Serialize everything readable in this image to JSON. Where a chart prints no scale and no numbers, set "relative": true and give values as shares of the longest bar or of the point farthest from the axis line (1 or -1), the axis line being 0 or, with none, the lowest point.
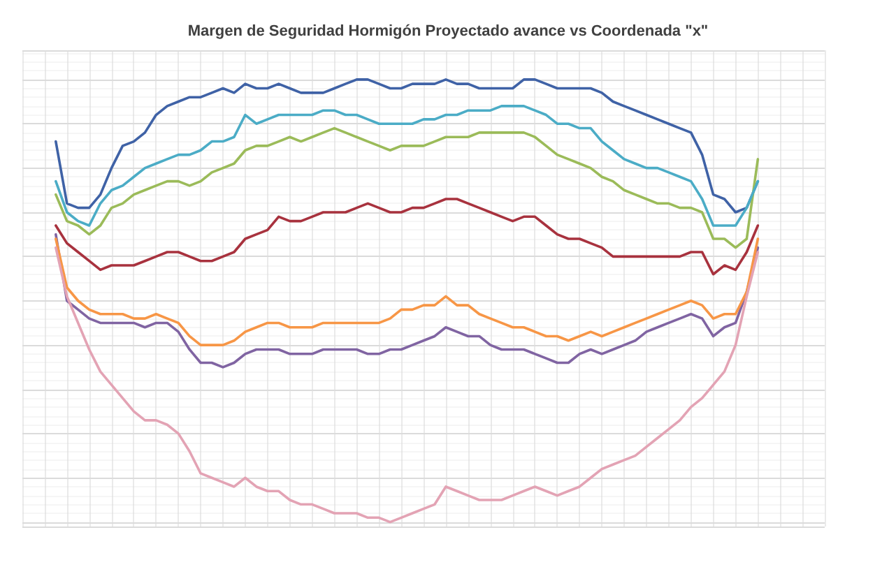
{
  "chart_data": {
    "type": "line",
    "title": "Margen de Seguridad Hormigón Proyectado avance vs Coordenada \"x\"",
    "relative": true,
    "grid": true,
    "categories": [
      null,
      null,
      null,
      null,
      null,
      null,
      null,
      null,
      null,
      null,
      null,
      null,
      null,
      null,
      null,
      null,
      null,
      null,
      null,
      null,
      null,
      null,
      null,
      null,
      null,
      null,
      null,
      null,
      null,
      null,
      null,
      null,
      null,
      null,
      null,
      null,
      null,
      null,
      null,
      null,
      null,
      null,
      null,
      null,
      null,
      null,
      null,
      null,
      null,
      null,
      null,
      null,
      null,
      null,
      null,
      null,
      null,
      null,
      null,
      null,
      null,
      null,
      null,
      null,
      null,
      null,
      null,
      null,
      null,
      null,
      null,
      null,
      null
    ],
    "series": [
      {
        "color": "#3f62a6",
        "values": [
          null,
          null,
          null,
          0.86,
          0.72,
          0.71,
          0.71,
          0.74,
          0.8,
          0.85,
          0.86,
          0.88,
          0.92,
          0.94,
          0.95,
          0.96,
          0.96,
          0.97,
          0.98,
          0.97,
          0.99,
          0.98,
          0.98,
          0.99,
          0.98,
          0.97,
          0.97,
          0.97,
          0.98,
          0.99,
          1.0,
          1.0,
          0.99,
          0.98,
          0.98,
          0.99,
          0.99,
          0.99,
          1.0,
          0.99,
          0.99,
          0.98,
          0.98,
          0.98,
          0.98,
          1.0,
          1.0,
          0.99,
          0.98,
          0.98,
          0.98,
          0.98,
          0.97,
          0.95,
          0.94,
          0.93,
          0.92,
          0.91,
          0.9,
          0.89,
          0.88,
          0.83,
          0.74,
          0.73,
          0.7,
          0.71,
          0.77,
          null,
          null,
          null,
          null,
          null,
          null
        ]
      },
      {
        "color": "#a8323e",
        "values": [
          null,
          null,
          null,
          0.67,
          0.63,
          0.61,
          0.59,
          0.57,
          0.58,
          0.58,
          0.58,
          0.59,
          0.6,
          0.61,
          0.61,
          0.6,
          0.59,
          0.59,
          0.6,
          0.61,
          0.64,
          0.65,
          0.66,
          0.69,
          0.68,
          0.68,
          0.69,
          0.7,
          0.7,
          0.7,
          0.71,
          0.72,
          0.71,
          0.7,
          0.7,
          0.71,
          0.71,
          0.72,
          0.73,
          0.73,
          0.72,
          0.71,
          0.7,
          0.69,
          0.68,
          0.69,
          0.69,
          0.67,
          0.65,
          0.64,
          0.64,
          0.63,
          0.62,
          0.6,
          0.6,
          0.6,
          0.6,
          0.6,
          0.6,
          0.6,
          0.61,
          0.61,
          0.56,
          0.58,
          0.57,
          0.61,
          0.67,
          null,
          null,
          null,
          null,
          null,
          null
        ]
      },
      {
        "color": "#9bbb59",
        "values": [
          null,
          null,
          null,
          0.74,
          0.68,
          0.67,
          0.65,
          0.67,
          0.71,
          0.72,
          0.74,
          0.75,
          0.76,
          0.77,
          0.77,
          0.76,
          0.77,
          0.79,
          0.8,
          0.81,
          0.84,
          0.85,
          0.85,
          0.86,
          0.87,
          0.86,
          0.87,
          0.88,
          0.89,
          0.88,
          0.87,
          0.86,
          0.85,
          0.84,
          0.85,
          0.85,
          0.85,
          0.86,
          0.87,
          0.87,
          0.87,
          0.88,
          0.88,
          0.88,
          0.88,
          0.88,
          0.87,
          0.85,
          0.83,
          0.82,
          0.81,
          0.8,
          0.78,
          0.77,
          0.75,
          0.74,
          0.73,
          0.72,
          0.72,
          0.71,
          0.71,
          0.7,
          0.64,
          0.64,
          0.62,
          0.64,
          0.82,
          null,
          null,
          null,
          null,
          null,
          null
        ]
      },
      {
        "color": "#8064a2",
        "values": [
          null,
          null,
          null,
          0.65,
          0.5,
          0.48,
          0.46,
          0.45,
          0.45,
          0.45,
          0.45,
          0.44,
          0.45,
          0.45,
          0.43,
          0.39,
          0.36,
          0.36,
          0.35,
          0.36,
          0.38,
          0.39,
          0.39,
          0.39,
          0.38,
          0.38,
          0.38,
          0.39,
          0.39,
          0.39,
          0.39,
          0.38,
          0.38,
          0.39,
          0.39,
          0.4,
          0.41,
          0.42,
          0.44,
          0.43,
          0.42,
          0.42,
          0.4,
          0.39,
          0.39,
          0.39,
          0.38,
          0.37,
          0.36,
          0.36,
          0.38,
          0.39,
          0.38,
          0.39,
          0.4,
          0.41,
          0.43,
          0.44,
          0.45,
          0.46,
          0.47,
          0.46,
          0.42,
          0.44,
          0.45,
          0.52,
          0.62,
          null,
          null,
          null,
          null,
          null,
          null
        ]
      },
      {
        "color": "#4bacc6",
        "values": [
          null,
          null,
          null,
          0.77,
          0.7,
          0.68,
          0.67,
          0.72,
          0.75,
          0.76,
          0.78,
          0.8,
          0.81,
          0.82,
          0.83,
          0.83,
          0.84,
          0.86,
          0.86,
          0.87,
          0.92,
          0.9,
          0.91,
          0.92,
          0.92,
          0.92,
          0.92,
          0.93,
          0.93,
          0.92,
          0.92,
          0.91,
          0.9,
          0.9,
          0.9,
          0.9,
          0.91,
          0.91,
          0.92,
          0.92,
          0.93,
          0.93,
          0.93,
          0.94,
          0.94,
          0.94,
          0.93,
          0.92,
          0.9,
          0.9,
          0.89,
          0.89,
          0.86,
          0.84,
          0.82,
          0.81,
          0.8,
          0.8,
          0.79,
          0.78,
          0.77,
          0.73,
          0.67,
          0.67,
          0.67,
          0.71,
          0.77,
          null,
          null,
          null,
          null,
          null,
          null
        ]
      },
      {
        "color": "#f79646",
        "values": [
          null,
          null,
          null,
          0.64,
          0.53,
          0.5,
          0.48,
          0.47,
          0.47,
          0.47,
          0.46,
          0.46,
          0.47,
          0.46,
          0.45,
          0.42,
          0.4,
          0.4,
          0.4,
          0.41,
          0.43,
          0.44,
          0.45,
          0.45,
          0.44,
          0.44,
          0.44,
          0.45,
          0.45,
          0.45,
          0.45,
          0.45,
          0.45,
          0.46,
          0.48,
          0.48,
          0.49,
          0.49,
          0.51,
          0.49,
          0.49,
          0.47,
          0.46,
          0.45,
          0.44,
          0.44,
          0.43,
          0.42,
          0.42,
          0.41,
          0.42,
          0.43,
          0.42,
          0.43,
          0.44,
          0.45,
          0.46,
          0.47,
          0.48,
          0.49,
          0.5,
          0.49,
          0.46,
          0.47,
          0.47,
          0.52,
          0.64,
          null,
          null,
          null,
          null,
          null,
          null
        ]
      },
      {
        "color": "#e3a3b4",
        "values": [
          null,
          null,
          null,
          0.62,
          0.51,
          0.45,
          0.39,
          0.34,
          0.31,
          0.28,
          0.25,
          0.23,
          0.23,
          0.22,
          0.2,
          0.16,
          0.11,
          0.1,
          0.09,
          0.08,
          0.1,
          0.08,
          0.07,
          0.07,
          0.05,
          0.04,
          0.04,
          0.03,
          0.02,
          0.02,
          0.02,
          0.01,
          0.01,
          0.0,
          0.01,
          0.02,
          0.03,
          0.04,
          0.08,
          0.07,
          0.06,
          0.05,
          0.05,
          0.05,
          0.06,
          0.07,
          0.08,
          0.07,
          0.06,
          0.07,
          0.08,
          0.1,
          0.12,
          0.13,
          0.14,
          0.15,
          0.17,
          0.19,
          0.21,
          0.23,
          0.26,
          0.28,
          0.31,
          0.34,
          0.4,
          0.51,
          0.61,
          null,
          null,
          null,
          null,
          null,
          null
        ]
      }
    ]
  }
}
